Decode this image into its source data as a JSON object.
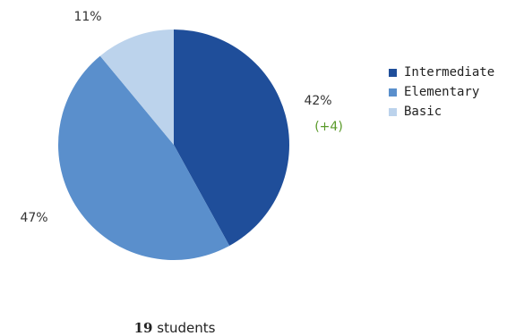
{
  "chart_data": {
    "type": "pie",
    "slices": [
      {
        "name": "Intermediate",
        "value": 42,
        "label": "42%",
        "delta": "(+4)",
        "color": "#1f4e9a"
      },
      {
        "name": "Elementary",
        "value": 47,
        "label": "47%",
        "color": "#5a8fcc"
      },
      {
        "name": "Basic",
        "value": 11,
        "label": "11%",
        "color": "#bcd3ec"
      }
    ],
    "legend_placement": "right"
  },
  "footer": {
    "count": "19",
    "unit": "students"
  }
}
